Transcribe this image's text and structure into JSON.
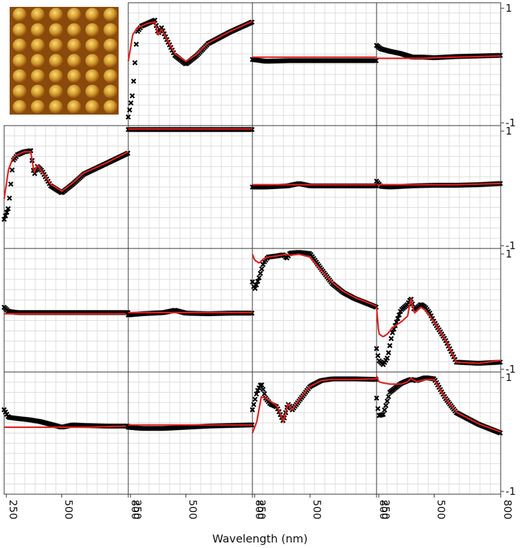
{
  "chart_data": {
    "type": "scatter",
    "description_layout": "4x4 grid of subplots; top-left cell replaced by an inset image",
    "xlabel": "Wavelength (nm)",
    "x_ticks": [
      250,
      500,
      800
    ],
    "x_tick_labels": [
      "250",
      "500",
      "800"
    ],
    "y_tick_labels_right": [
      "1",
      "-1"
    ],
    "xlim": [
      240,
      800
    ],
    "ylim": [
      -1,
      1
    ],
    "grid": true,
    "series_style": {
      "measured": {
        "marker": "x",
        "color": "#000000"
      },
      "fit": {
        "line": "solid",
        "color": "#e01e1e"
      }
    },
    "inset": {
      "name": "afm-inset-image",
      "rows": 7,
      "cols": 6,
      "colors": {
        "bg": "#8a4a0c",
        "mid": "#d39a2a",
        "hi": "#f6dc7a"
      }
    },
    "panels": [
      {
        "row": 0,
        "col": 1,
        "x": [
          240,
          260,
          280,
          300,
          330,
          360,
          375,
          390,
          410,
          450,
          500,
          550,
          600,
          700,
          800
        ],
        "measured": [
          -0.9,
          -0.5,
          0.55,
          0.65,
          0.7,
          0.75,
          0.52,
          0.62,
          0.45,
          0.15,
          0.0,
          0.15,
          0.35,
          0.55,
          0.72
        ],
        "fit": [
          0.05,
          0.5,
          0.62,
          0.65,
          0.7,
          0.72,
          0.5,
          0.6,
          0.45,
          0.18,
          0.05,
          0.17,
          0.36,
          0.56,
          0.73
        ]
      },
      {
        "row": 0,
        "col": 2,
        "x": [
          240,
          300,
          400,
          500,
          600,
          700,
          800
        ],
        "measured": [
          0.08,
          0.05,
          0.06,
          0.06,
          0.06,
          0.06,
          0.06
        ],
        "fit": [
          0.12,
          0.12,
          0.12,
          0.12,
          0.12,
          0.12,
          0.12
        ]
      },
      {
        "row": 0,
        "col": 3,
        "x": [
          240,
          260,
          300,
          350,
          400,
          450,
          500,
          600,
          700,
          800
        ],
        "measured": [
          0.32,
          0.26,
          0.22,
          0.18,
          0.12,
          0.12,
          0.11,
          0.13,
          0.14,
          0.15
        ],
        "fit": [
          0.1,
          0.1,
          0.1,
          0.1,
          0.1,
          0.1,
          0.11,
          0.12,
          0.13,
          0.14
        ]
      },
      {
        "row": 1,
        "col": 0,
        "x": [
          240,
          260,
          280,
          300,
          330,
          360,
          375,
          390,
          410,
          450,
          500,
          550,
          600,
          700,
          800
        ],
        "measured": [
          -0.55,
          -0.35,
          0.45,
          0.55,
          0.6,
          0.62,
          0.2,
          0.35,
          0.28,
          0.02,
          -0.1,
          0.05,
          0.22,
          0.4,
          0.58
        ],
        "fit": [
          -0.2,
          0.3,
          0.5,
          0.55,
          0.6,
          0.6,
          0.25,
          0.38,
          0.26,
          0.05,
          -0.07,
          0.07,
          0.24,
          0.41,
          0.6
        ]
      },
      {
        "row": 1,
        "col": 1,
        "x": [
          240,
          400,
          600,
          800
        ],
        "measured": [
          0.98,
          0.98,
          0.98,
          0.98
        ],
        "fit": [
          0.99,
          0.99,
          0.99,
          0.99
        ]
      },
      {
        "row": 1,
        "col": 2,
        "x": [
          240,
          300,
          400,
          450,
          500,
          600,
          700,
          800
        ],
        "measured": [
          0.0,
          0.0,
          0.02,
          0.06,
          0.02,
          0.02,
          0.02,
          0.02
        ],
        "fit": [
          0.04,
          0.04,
          0.04,
          0.04,
          0.04,
          0.04,
          0.04,
          0.04
        ]
      },
      {
        "row": 1,
        "col": 3,
        "x": [
          240,
          260,
          300,
          400,
          500,
          600,
          700,
          800
        ],
        "measured": [
          0.1,
          0.01,
          0.0,
          0.02,
          0.03,
          0.03,
          0.04,
          0.06
        ],
        "fit": [
          0.04,
          0.04,
          0.04,
          0.04,
          0.04,
          0.04,
          0.05,
          0.06
        ]
      },
      {
        "row": 2,
        "col": 0,
        "x": [
          240,
          260,
          300,
          400,
          500,
          600,
          700,
          800
        ],
        "measured": [
          0.05,
          -0.02,
          -0.04,
          -0.04,
          -0.04,
          -0.04,
          -0.04,
          -0.04
        ],
        "fit": [
          -0.06,
          -0.06,
          -0.06,
          -0.06,
          -0.06,
          -0.06,
          -0.06,
          -0.06
        ]
      },
      {
        "row": 2,
        "col": 1,
        "x": [
          240,
          300,
          400,
          450,
          500,
          600,
          700,
          800
        ],
        "measured": [
          -0.08,
          -0.06,
          -0.04,
          0.0,
          -0.05,
          -0.06,
          -0.05,
          -0.05
        ],
        "fit": [
          -0.04,
          -0.04,
          -0.04,
          -0.04,
          -0.04,
          -0.04,
          -0.04,
          -0.04
        ]
      },
      {
        "row": 2,
        "col": 2,
        "x": [
          240,
          250,
          270,
          290,
          310,
          350,
          380,
          395,
          410,
          450,
          500,
          550,
          600,
          650,
          700,
          800
        ],
        "measured": [
          0.48,
          0.35,
          0.55,
          0.8,
          0.9,
          0.92,
          0.94,
          0.88,
          0.97,
          0.98,
          0.96,
          0.7,
          0.45,
          0.3,
          0.2,
          0.05
        ],
        "fit": [
          0.95,
          0.85,
          0.8,
          0.87,
          0.9,
          0.92,
          0.94,
          0.95,
          0.93,
          0.95,
          0.9,
          0.68,
          0.47,
          0.32,
          0.22,
          0.07
        ]
      },
      {
        "row": 2,
        "col": 3,
        "x": [
          240,
          250,
          270,
          290,
          310,
          350,
          380,
          395,
          410,
          440,
          460,
          480,
          500,
          550,
          600,
          700,
          800
        ],
        "measured": [
          -0.65,
          -0.85,
          -0.92,
          -0.8,
          -0.4,
          0.0,
          0.1,
          0.2,
          0.0,
          0.1,
          0.05,
          -0.05,
          -0.2,
          -0.5,
          -0.88,
          -0.9,
          -0.88
        ],
        "fit": [
          0.05,
          -0.4,
          -0.45,
          -0.4,
          -0.3,
          -0.2,
          -0.1,
          0.2,
          -0.05,
          0.05,
          0.0,
          -0.1,
          -0.2,
          -0.5,
          -0.88,
          -0.9,
          -0.85
        ]
      },
      {
        "row": 3,
        "col": 0,
        "x": [
          240,
          260,
          300,
          350,
          400,
          450,
          500,
          550,
          600,
          700,
          800
        ],
        "measured": [
          0.4,
          0.27,
          0.25,
          0.23,
          0.2,
          0.15,
          0.1,
          0.14,
          0.13,
          0.12,
          0.12
        ],
        "fit": [
          0.1,
          0.1,
          0.1,
          0.1,
          0.1,
          0.1,
          0.1,
          0.1,
          0.1,
          0.11,
          0.12
        ]
      },
      {
        "row": 3,
        "col": 1,
        "x": [
          240,
          300,
          400,
          500,
          600,
          700,
          800
        ],
        "measured": [
          0.1,
          0.08,
          0.08,
          0.1,
          0.12,
          0.13,
          0.14
        ],
        "fit": [
          0.14,
          0.14,
          0.14,
          0.14,
          0.14,
          0.14,
          0.14
        ]
      },
      {
        "row": 3,
        "col": 2,
        "x": [
          240,
          260,
          280,
          300,
          320,
          350,
          380,
          400,
          420,
          450,
          500,
          550,
          600,
          700,
          800
        ],
        "measured": [
          0.4,
          0.7,
          0.85,
          0.6,
          0.5,
          0.45,
          0.2,
          0.5,
          0.4,
          0.55,
          0.8,
          0.9,
          0.93,
          0.93,
          0.92
        ],
        "fit": [
          0.0,
          0.2,
          0.62,
          0.6,
          0.55,
          0.47,
          0.2,
          0.5,
          0.4,
          0.57,
          0.8,
          0.9,
          0.92,
          0.92,
          0.93
        ]
      },
      {
        "row": 3,
        "col": 3,
        "x": [
          240,
          250,
          270,
          300,
          350,
          380,
          395,
          420,
          460,
          500,
          550,
          600,
          700,
          800
        ],
        "measured": [
          0.6,
          0.3,
          0.32,
          0.7,
          0.85,
          0.9,
          0.92,
          0.9,
          0.95,
          0.93,
          0.6,
          0.35,
          0.15,
          0.0
        ],
        "fit": [
          0.98,
          0.88,
          0.86,
          0.84,
          0.84,
          0.88,
          0.94,
          0.88,
          0.92,
          0.92,
          0.6,
          0.36,
          0.16,
          0.02
        ]
      }
    ]
  }
}
